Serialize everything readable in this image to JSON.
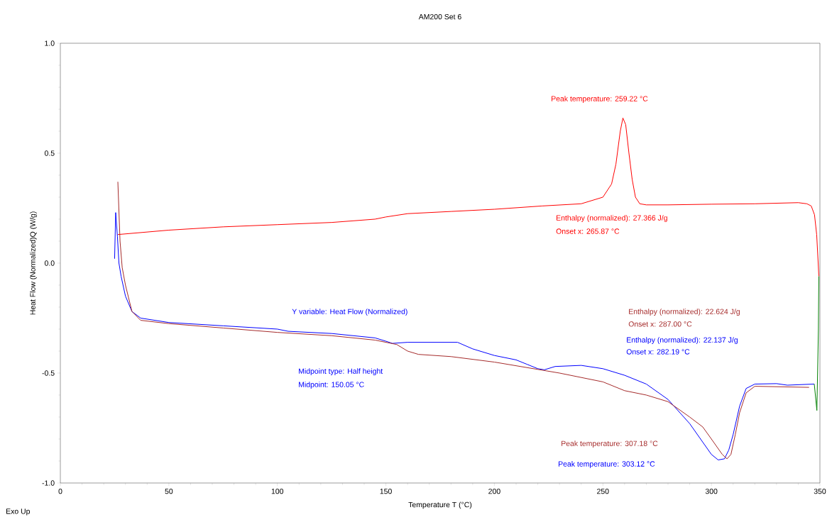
{
  "chart_data": {
    "type": "line",
    "title": "AM200 Set 6",
    "xlabel": "Temperature T (°C)",
    "ylabel": "Heat Flow (Normalized)Q (W/g)",
    "xlim": [
      0,
      350
    ],
    "xticks": [
      0,
      50,
      100,
      150,
      200,
      250,
      300,
      350
    ],
    "ylim": [
      -1.0,
      1.0
    ],
    "yticks": [
      {
        "value": -1.0,
        "label": "-1.0"
      },
      {
        "value": -0.5,
        "label": "-0.5"
      },
      {
        "value": 0.0,
        "label": "0.0"
      },
      {
        "value": 0.5,
        "label": "0.5"
      },
      {
        "value": 1.0,
        "label": "1.0"
      }
    ],
    "series": [
      {
        "color": "#ff0000",
        "x": [
          26.5,
          50,
          75,
          100,
          125,
          145,
          150,
          160,
          180,
          200,
          222,
          240,
          250,
          254,
          256,
          258,
          259.22,
          260.5,
          262,
          263.5,
          265,
          267,
          270,
          280,
          300,
          320,
          340,
          344,
          346,
          347.5,
          348.5,
          349.2,
          349.5
        ],
        "values": [
          0.13,
          0.15,
          0.165,
          0.175,
          0.185,
          0.2,
          0.21,
          0.225,
          0.235,
          0.245,
          0.26,
          0.27,
          0.3,
          0.36,
          0.45,
          0.6,
          0.66,
          0.63,
          0.5,
          0.38,
          0.3,
          0.27,
          0.265,
          0.265,
          0.268,
          0.27,
          0.275,
          0.27,
          0.26,
          0.22,
          0.13,
          0.0,
          -0.06
        ]
      },
      {
        "color": "#0000ff",
        "x": [
          25,
          25.5,
          26.3,
          27,
          28,
          30,
          33,
          37,
          50,
          75,
          100,
          105,
          125,
          145,
          150,
          153,
          160,
          183,
          190,
          200,
          210,
          215,
          220,
          223,
          228,
          240,
          250,
          260,
          270,
          280,
          290,
          300,
          303.12,
          306,
          308,
          310,
          313,
          316,
          320,
          330,
          335,
          347.4
        ],
        "values": [
          0.02,
          0.23,
          0.12,
          0.0,
          -0.06,
          -0.15,
          -0.22,
          -0.25,
          -0.27,
          -0.285,
          -0.3,
          -0.31,
          -0.32,
          -0.34,
          -0.355,
          -0.365,
          -0.36,
          -0.36,
          -0.39,
          -0.42,
          -0.44,
          -0.46,
          -0.48,
          -0.485,
          -0.47,
          -0.465,
          -0.48,
          -0.51,
          -0.55,
          -0.62,
          -0.73,
          -0.87,
          -0.895,
          -0.89,
          -0.85,
          -0.78,
          -0.65,
          -0.57,
          -0.55,
          -0.548,
          -0.555,
          -0.55
        ]
      },
      {
        "color": "#a52a2a",
        "x": [
          26.5,
          27.5,
          28.5,
          30,
          33,
          37,
          50,
          75,
          100,
          125,
          145,
          155,
          160,
          165,
          180,
          200,
          230,
          250,
          260,
          270,
          280,
          290,
          296,
          300,
          305,
          307.18,
          309,
          311,
          313,
          316,
          320,
          345
        ],
        "values": [
          0.37,
          0.1,
          -0.02,
          -0.1,
          -0.22,
          -0.26,
          -0.275,
          -0.295,
          -0.315,
          -0.33,
          -0.35,
          -0.37,
          -0.4,
          -0.415,
          -0.425,
          -0.45,
          -0.5,
          -0.54,
          -0.58,
          -0.6,
          -0.63,
          -0.7,
          -0.745,
          -0.8,
          -0.87,
          -0.89,
          -0.87,
          -0.78,
          -0.68,
          -0.59,
          -0.56,
          -0.565
        ]
      },
      {
        "color": "#008000",
        "x": [
          347.4,
          348.6,
          349.3,
          349.5
        ],
        "values": [
          -0.55,
          -0.67,
          -0.3,
          -0.06
        ]
      }
    ],
    "annotations": [
      "Peak temperature: 259.22 °C",
      "Enthalpy (normalized): 27.366 J/g",
      "Onset x: 265.87 °C",
      "Y variable: Heat Flow (Normalized)",
      "Midpoint type: Half height",
      "Midpoint: 150.05 °C",
      "Enthalpy (normalized): 22.624 J/g",
      "Onset x: 287.00 °C",
      "Enthalpy (normalized): 22.137 J/g",
      "Onset x: 282.19 °C",
      "Peak temperature: 307.18 °C",
      "Peak temperature: 303.12 °C",
      "Exo Up"
    ]
  }
}
